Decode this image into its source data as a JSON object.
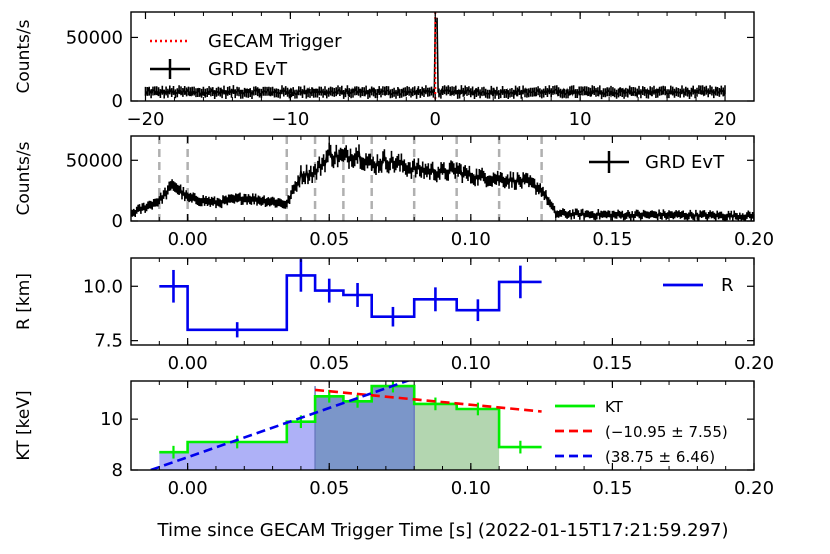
{
  "xlabel": "Time since GECAM Trigger Time [s] (2022-01-15T17:21:59.297)",
  "chart_data": [
    {
      "type": "line",
      "ylabel": "Counts/s",
      "xlim": [
        -21,
        22
      ],
      "ylim": [
        0,
        70000
      ],
      "xticks": [
        -20,
        -10,
        0,
        10,
        20
      ],
      "xticklabels": [
        "−20",
        "−10",
        "0",
        "10",
        "20"
      ],
      "yticks": [
        0,
        50000
      ],
      "yticklabels": [
        "0",
        "50000"
      ],
      "legend": [
        "GECAM Trigger",
        "GRD EvT"
      ],
      "legend_position": "top-left",
      "trigger_time": 0,
      "series": [
        {
          "name": "GRD EvT",
          "baseline": 7000,
          "peak_time": 0.05,
          "peak_value": 62000,
          "x_range": [
            -20,
            20
          ]
        }
      ]
    },
    {
      "type": "line",
      "ylabel": "Counts/s",
      "xlim": [
        -0.02,
        0.2
      ],
      "ylim": [
        0,
        70000
      ],
      "xticks": [
        0.0,
        0.05,
        0.1,
        0.15,
        0.2
      ],
      "xticklabels": [
        "0.00",
        "0.05",
        "0.10",
        "0.15",
        "0.20"
      ],
      "yticks": [
        0,
        50000
      ],
      "yticklabels": [
        "0",
        "50000"
      ],
      "legend": [
        "GRD EvT"
      ],
      "legend_position": "top-right",
      "dashed_lines_x": [
        -0.01,
        0.0,
        0.035,
        0.045,
        0.055,
        0.065,
        0.08,
        0.095,
        0.11,
        0.125
      ],
      "series": [
        {
          "name": "GRD EvT",
          "x": [
            -0.02,
            -0.01,
            -0.005,
            0.0,
            0.01,
            0.02,
            0.03,
            0.035,
            0.04,
            0.045,
            0.05,
            0.055,
            0.06,
            0.065,
            0.07,
            0.08,
            0.09,
            0.095,
            0.1,
            0.11,
            0.12,
            0.125,
            0.13,
            0.15,
            0.17,
            0.2
          ],
          "y": [
            6000,
            17000,
            30000,
            19000,
            15000,
            19000,
            16000,
            14000,
            38000,
            40000,
            55000,
            52000,
            56000,
            46000,
            50000,
            43000,
            40000,
            42000,
            37000,
            35000,
            32000,
            26000,
            6000,
            5000,
            5000,
            4000
          ]
        }
      ]
    },
    {
      "type": "line",
      "ylabel": "R [km]",
      "xlim": [
        -0.02,
        0.2
      ],
      "ylim": [
        7.3,
        11.3
      ],
      "xticks": [
        0.0,
        0.05,
        0.1,
        0.15,
        0.2
      ],
      "xticklabels": [
        "0.00",
        "0.05",
        "0.10",
        "0.15",
        "0.20"
      ],
      "yticks": [
        7.5,
        10.0
      ],
      "yticklabels": [
        "7.5",
        "10.0"
      ],
      "legend": [
        "R"
      ],
      "legend_position": "top-right",
      "series": [
        {
          "name": "R",
          "edges": [
            -0.01,
            0.0,
            0.035,
            0.045,
            0.055,
            0.065,
            0.08,
            0.095,
            0.11,
            0.125
          ],
          "values": [
            10.0,
            8.0,
            10.5,
            9.8,
            9.6,
            8.6,
            9.4,
            8.9,
            10.2
          ],
          "errors": [
            0.75,
            0.35,
            0.75,
            0.55,
            0.55,
            0.45,
            0.55,
            0.5,
            0.75
          ]
        }
      ]
    },
    {
      "type": "area",
      "ylabel": "KT [keV]",
      "xlim": [
        -0.02,
        0.2
      ],
      "ylim": [
        8,
        11.5
      ],
      "xticks": [
        0.0,
        0.05,
        0.1,
        0.15,
        0.2
      ],
      "xticklabels": [
        "0.00",
        "0.05",
        "0.10",
        "0.15",
        "0.20"
      ],
      "yticks": [
        8,
        10
      ],
      "yticklabels": [
        "8",
        "10"
      ],
      "legend": [
        "KT",
        "(−10.95 ± 7.55)",
        "(38.75 ± 6.46)"
      ],
      "legend_position": "right",
      "series": [
        {
          "name": "KT",
          "edges": [
            -0.01,
            0.0,
            0.035,
            0.045,
            0.055,
            0.065,
            0.08,
            0.095,
            0.11,
            0.125
          ],
          "values": [
            8.7,
            9.1,
            9.9,
            10.9,
            10.7,
            11.3,
            10.6,
            10.4,
            8.9
          ]
        },
        {
          "name": "(−10.95 ± 7.55)",
          "x": [
            0.045,
            0.125
          ],
          "y": [
            11.15,
            10.3
          ]
        },
        {
          "name": "(38.75 ± 6.46)",
          "x": [
            -0.013,
            0.08
          ],
          "y": [
            8.0,
            11.6
          ]
        }
      ],
      "shaded_regions": [
        {
          "x": [
            -0.01,
            0.045
          ],
          "color": "#aeb1f7"
        },
        {
          "x": [
            0.045,
            0.08
          ],
          "color": "#7b96c9"
        },
        {
          "x": [
            0.08,
            0.11
          ],
          "color": "#b3d6b0"
        }
      ]
    }
  ],
  "colors": {
    "trigger": "#ff0000",
    "R": "#0000ee",
    "KT": "#00ee00",
    "fit_red": "#ff0000",
    "fit_blue": "#0000ee",
    "dashed": "#b0b0b0"
  }
}
